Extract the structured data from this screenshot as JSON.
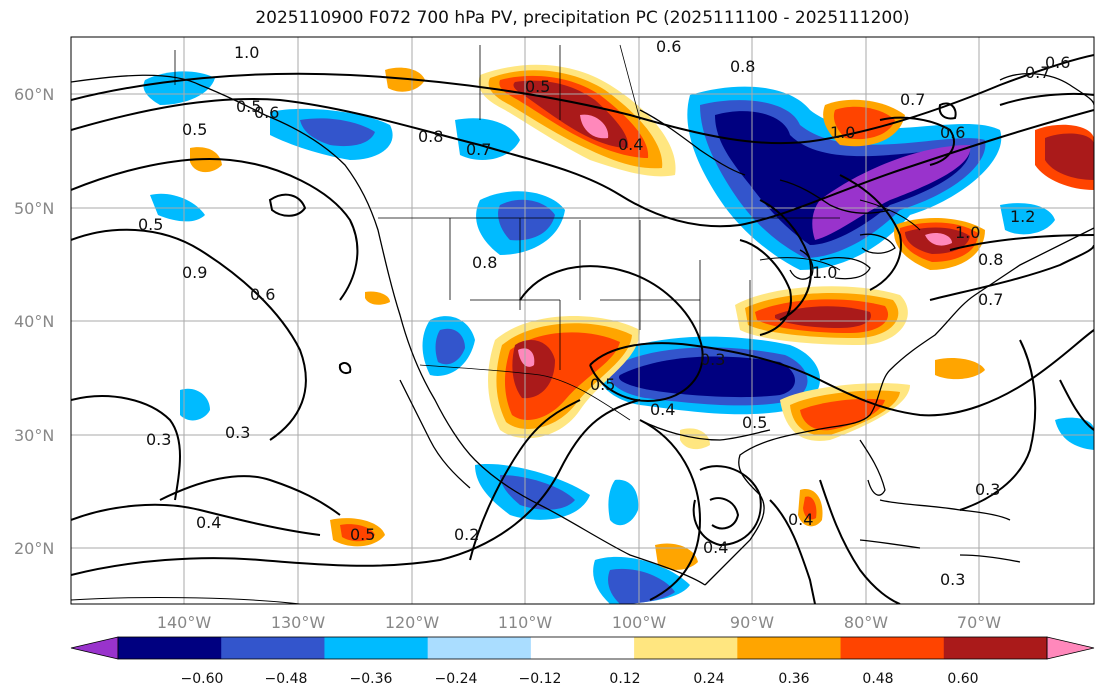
{
  "title": "2025110900 F072 700 hPa PV, precipitation PC (2025111100 - 2025111200)",
  "lat_labels": [
    "60°N",
    "50°N",
    "40°N",
    "30°N",
    "20°N"
  ],
  "lon_labels": [
    "140°W",
    "130°W",
    "120°W",
    "110°W",
    "100°W",
    "90°W",
    "80°W",
    "70°W"
  ],
  "colorbar": {
    "ticks": [
      "−0.60",
      "−0.48",
      "−0.36",
      "−0.24",
      "−0.12",
      "0.12",
      "0.24",
      "0.36",
      "0.48",
      "0.60"
    ],
    "colors": [
      "#9933cc",
      "#000080",
      "#3355cc",
      "#00bbff",
      "#aaddff",
      "#ffffff",
      "#ffe680",
      "#ffa500",
      "#ff4400",
      "#aa1a1a",
      "#ff88bb"
    ]
  },
  "contour_labels": [
    "1.0",
    "0.5",
    "0.5",
    "0.6",
    "0.8",
    "0.7",
    "0.5",
    "0.4",
    "0.6",
    "1.0",
    "0.6",
    "0.7",
    "0.6",
    "0.7",
    "0.8",
    "1.0",
    "1.2",
    "0.8",
    "0.7",
    "0.5",
    "0.9",
    "0.6",
    "0.8",
    "0.3",
    "0.5",
    "0.4",
    "0.5",
    "0.3",
    "0.3",
    "0.4",
    "0.5",
    "0.2",
    "0.4",
    "0.4",
    "0.3",
    "0.3",
    "1.0"
  ],
  "map": {
    "lon_range": [
      -150,
      -60
    ],
    "lat_range": [
      15,
      65
    ],
    "shaded_field": "precipitation PC",
    "contour_field": "700 hPa PV"
  }
}
